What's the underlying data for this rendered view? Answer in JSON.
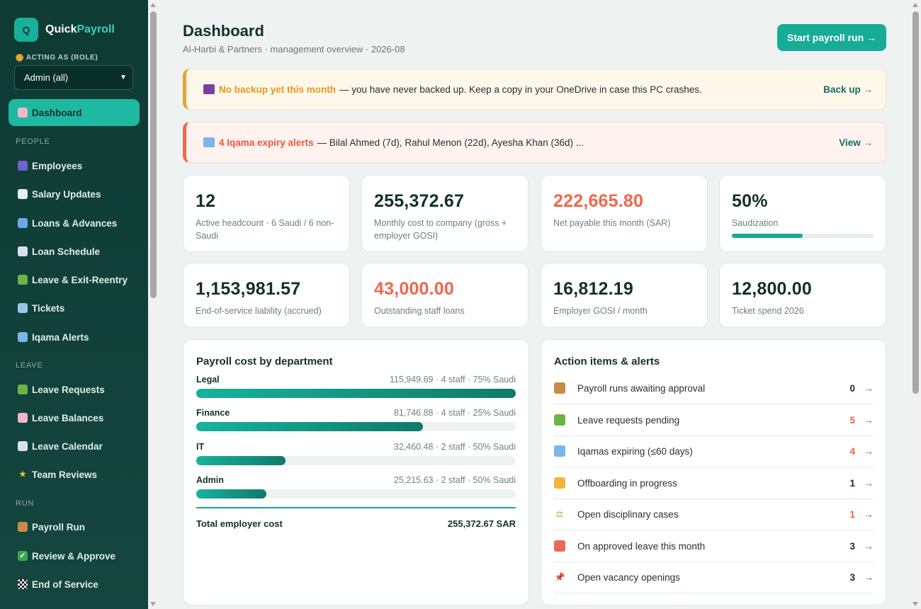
{
  "sidebar": {
    "logo_letter": "Q",
    "brand_part1": "Quick",
    "brand_part2": "Payroll",
    "role_label": "ACTING AS (ROLE)",
    "role_value": "Admin (all)",
    "items": [
      {
        "label": "Dashboard",
        "icon": "bar-chart-icon"
      },
      {
        "label": "Employees",
        "icon": "people-icon"
      },
      {
        "label": "Salary Updates",
        "icon": "trend-up-icon"
      },
      {
        "label": "Loans & Advances",
        "icon": "card-icon"
      },
      {
        "label": "Loan Schedule",
        "icon": "calendar-icon"
      },
      {
        "label": "Leave & Exit-Reentry",
        "icon": "palm-tree-icon"
      },
      {
        "label": "Tickets",
        "icon": "plane-icon"
      },
      {
        "label": "Iqama Alerts",
        "icon": "id-card-icon"
      },
      {
        "label": "Leave Requests",
        "icon": "palm-tree-icon"
      },
      {
        "label": "Leave Balances",
        "icon": "bar-chart-icon"
      },
      {
        "label": "Leave Calendar",
        "icon": "calendar-icon"
      },
      {
        "label": "Team Reviews",
        "icon": "star-icon"
      },
      {
        "label": "Payroll Run",
        "icon": "abacus-icon"
      },
      {
        "label": "Review & Approve",
        "icon": "check-icon"
      },
      {
        "label": "End of Service",
        "icon": "checkered-flag-icon"
      }
    ],
    "sections": {
      "people": "PEOPLE",
      "leave": "LEAVE",
      "run": "RUN"
    }
  },
  "header": {
    "title": "Dashboard",
    "subtitle": "Al-Harbi & Partners · management overview · 2026-08",
    "primary_action": "Start payroll run →"
  },
  "banners": {
    "backup": {
      "strong": "No backup yet this month",
      "text": "— you have never backed up. Keep a copy in your OneDrive in case this PC crashes.",
      "link": "Back up →"
    },
    "iqama": {
      "strong": "4 Iqama expiry alerts",
      "text": "— Bilal Ahmed (7d), Rahul Menon (22d), Ayesha Khan (36d) ...",
      "link": "View →"
    }
  },
  "stats": [
    {
      "value": "12",
      "label": "Active headcount · 6 Saudi / 6 non-Saudi"
    },
    {
      "value": "255,372.67",
      "label": "Monthly cost to company (gross + employer GOSI)"
    },
    {
      "value": "222,665.80",
      "label": "Net payable this month (SAR)"
    },
    {
      "value": "50%",
      "label": "Saudization",
      "progress": 0.5
    },
    {
      "value": "1,153,981.57",
      "label": "End-of-service liability (accrued)"
    },
    {
      "value": "43,000.00",
      "label": "Outstanding staff loans"
    },
    {
      "value": "16,812.19",
      "label": "Employer GOSI / month"
    },
    {
      "value": "12,800.00",
      "label": "Ticket spend 2026"
    }
  ],
  "payroll_panel": {
    "title": "Payroll cost by department",
    "departments": [
      {
        "name": "Legal",
        "meta": "115,949.69 · 4 staff · 75% Saudi",
        "share": 1.0
      },
      {
        "name": "Finance",
        "meta": "81,746.88 · 4 staff · 25% Saudi",
        "share": 0.71
      },
      {
        "name": "IT",
        "meta": "32,460.48 · 2 staff · 50% Saudi",
        "share": 0.28
      },
      {
        "name": "Admin",
        "meta": "25,215.63 · 2 staff · 50% Saudi",
        "share": 0.22
      }
    ],
    "total_label": "Total employer cost",
    "total_value": "255,372.67 SAR"
  },
  "actions_panel": {
    "title": "Action items & alerts",
    "items": [
      {
        "label": "Payroll runs awaiting approval",
        "count": "0",
        "icon": "abacus-icon"
      },
      {
        "label": "Leave requests pending",
        "count": "5",
        "icon": "palm-tree-icon"
      },
      {
        "label": "Iqamas expiring (≤60 days)",
        "count": "4",
        "icon": "id-card-icon"
      },
      {
        "label": "Offboarding in progress",
        "count": "1",
        "icon": "wave-hand-icon"
      },
      {
        "label": "Open disciplinary cases",
        "count": "1",
        "icon": "scales-icon"
      },
      {
        "label": "On approved leave this month",
        "count": "3",
        "icon": "beach-icon"
      },
      {
        "label": "Open vacancy openings",
        "count": "3",
        "icon": "pushpin-icon"
      }
    ],
    "arrow": "→"
  }
}
